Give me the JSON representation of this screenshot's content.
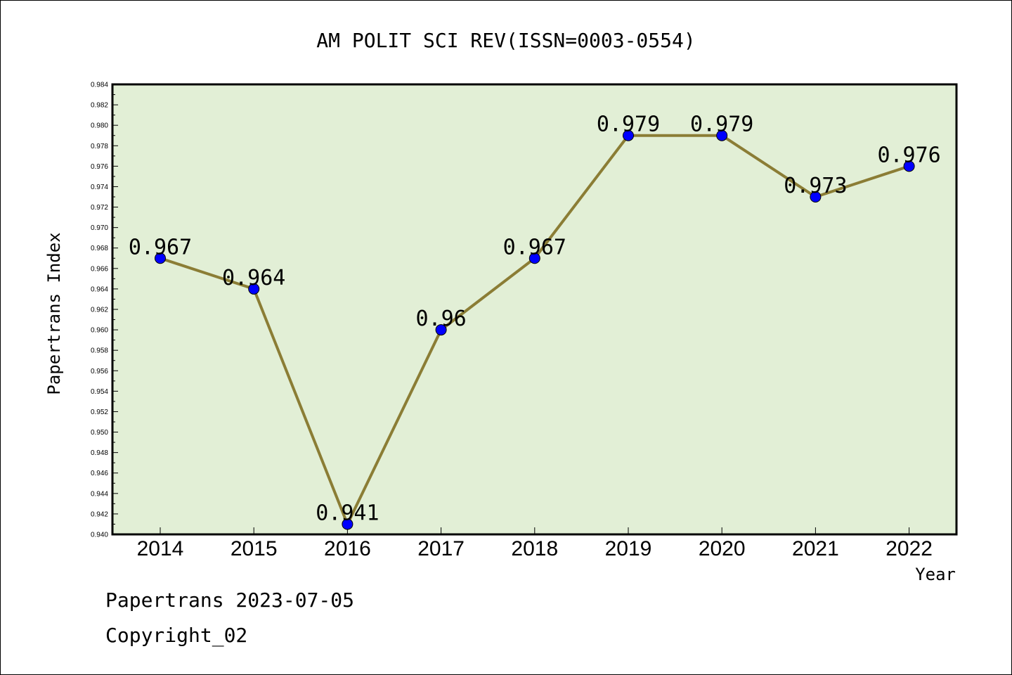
{
  "footer": {
    "line1": "Papertrans 2023-07-05",
    "line2": "Copyright_02"
  },
  "colors": {
    "plot_background": "#e2efd6",
    "line": "#8b7d35",
    "marker": "#0000ff"
  },
  "chart_data": {
    "type": "line",
    "title": "AM POLIT SCI REV(ISSN=0003-0554)",
    "xlabel": "Year",
    "ylabel": "Papertrans Index",
    "categories": [
      "2014",
      "2015",
      "2016",
      "2017",
      "2018",
      "2019",
      "2020",
      "2021",
      "2022"
    ],
    "series": [
      {
        "values": [
          0.967,
          0.964,
          0.941,
          0.96,
          0.967,
          0.979,
          0.979,
          0.973,
          0.976
        ],
        "data_labels": [
          "0.967",
          "0.964",
          "0.941",
          "0.96",
          "0.967",
          "0.979",
          "0.979",
          "0.973",
          "0.976"
        ]
      }
    ],
    "ylim": [
      0.94,
      0.984
    ],
    "yticks": [
      "0.940",
      "0.942",
      "0.944",
      "0.946",
      "0.948",
      "0.950",
      "0.952",
      "0.954",
      "0.956",
      "0.958",
      "0.960",
      "0.962",
      "0.964",
      "0.966",
      "0.968",
      "0.970",
      "0.972",
      "0.974",
      "0.976",
      "0.978",
      "0.980",
      "0.982",
      "0.984"
    ],
    "grid": false,
    "legend": "none"
  }
}
